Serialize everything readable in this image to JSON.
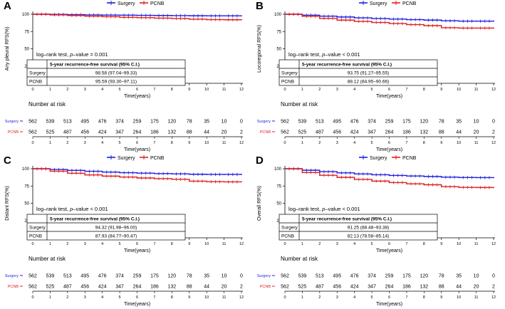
{
  "legend": {
    "surgery": "Surgery",
    "pcnb": "PCNB"
  },
  "colors": {
    "surgery": "#1f1fe0",
    "pcnb": "#e01f1f",
    "axis": "#000000",
    "grid": "#cccccc"
  },
  "table_header": "5-year recurrence-free survival (95% C.I.)",
  "risk_title": "Number at risk",
  "chart_data": [
    {
      "panel": "A",
      "type": "line",
      "title": "",
      "xlabel": "Time(years)",
      "ylabel": "Any pleural RFS(%)",
      "xlim": [
        0,
        12
      ],
      "ylim": [
        0,
        100
      ],
      "x_ticks": [
        "0",
        "1",
        "2",
        "3",
        "4",
        "5",
        "6",
        "7",
        "8",
        "9",
        "10",
        "11",
        "12"
      ],
      "y_ticks": [
        "0",
        "25",
        "50",
        "75",
        "100"
      ],
      "logrank_prefix": "log–rank test, ",
      "logrank_p": "p",
      "logrank_suffix": "–value = 0.001",
      "series": [
        {
          "name": "Surgery",
          "x": [
            0,
            1,
            2,
            3,
            4,
            5,
            6,
            7,
            8,
            9,
            10,
            11,
            12
          ],
          "values": [
            100,
            99.8,
            99.4,
            99.0,
            98.8,
            98.6,
            98.4,
            98.2,
            98.0,
            97.8,
            97.7,
            97.7,
            97.7
          ]
        },
        {
          "name": "PCNB",
          "x": [
            0,
            1,
            2,
            3,
            4,
            5,
            6,
            7,
            8,
            9,
            10,
            11,
            12
          ],
          "values": [
            100,
            99.0,
            98.2,
            97.2,
            96.5,
            95.6,
            95.0,
            94.4,
            93.8,
            92.8,
            92.2,
            92.0,
            92.0
          ]
        }
      ],
      "table_rows": [
        {
          "group": "Surgery",
          "value": "98.58 (97.04–99.33)"
        },
        {
          "group": "PCNB",
          "value": "95.59 (93.30–97.11)"
        }
      ],
      "risk": {
        "surgery": [
          "562",
          "539",
          "513",
          "495",
          "476",
          "374",
          "259",
          "175",
          "120",
          "78",
          "35",
          "10",
          "0"
        ],
        "pcnb": [
          "562",
          "525",
          "487",
          "456",
          "424",
          "347",
          "264",
          "186",
          "132",
          "88",
          "44",
          "20",
          "2"
        ]
      }
    },
    {
      "panel": "B",
      "type": "line",
      "title": "",
      "xlabel": "Time(years)",
      "ylabel": "Locoregional RFS(%)",
      "xlim": [
        0,
        12
      ],
      "ylim": [
        0,
        100
      ],
      "x_ticks": [
        "0",
        "1",
        "2",
        "3",
        "4",
        "5",
        "6",
        "7",
        "8",
        "9",
        "10",
        "11",
        "12"
      ],
      "y_ticks": [
        "0",
        "25",
        "50",
        "75",
        "100"
      ],
      "logrank_prefix": "log–rank test, ",
      "logrank_p": "p",
      "logrank_suffix": "–value < 0.001",
      "series": [
        {
          "name": "Surgery",
          "x": [
            0,
            1,
            2,
            3,
            4,
            5,
            6,
            7,
            8,
            9,
            10,
            11,
            12
          ],
          "values": [
            100,
            98.6,
            97.2,
            96.0,
            94.8,
            93.8,
            93.0,
            92.2,
            91.5,
            90.5,
            90.0,
            90.0,
            90.0
          ]
        },
        {
          "name": "PCNB",
          "x": [
            0,
            1,
            2,
            3,
            4,
            5,
            6,
            7,
            8,
            9,
            10,
            11,
            12
          ],
          "values": [
            100,
            97.0,
            94.0,
            91.5,
            89.6,
            88.1,
            86.5,
            85.0,
            83.5,
            80.5,
            80.0,
            80.0,
            80.0
          ]
        }
      ],
      "table_rows": [
        {
          "group": "Surgery",
          "value": "93.75 (91.27–95.55)"
        },
        {
          "group": "PCNB",
          "value": "88.12 (84.95–90.66)"
        }
      ],
      "risk": {
        "surgery": [
          "562",
          "539",
          "513",
          "495",
          "476",
          "374",
          "259",
          "175",
          "120",
          "78",
          "35",
          "10",
          "0"
        ],
        "pcnb": [
          "562",
          "525",
          "487",
          "456",
          "424",
          "347",
          "264",
          "186",
          "132",
          "88",
          "44",
          "20",
          "2"
        ]
      }
    },
    {
      "panel": "C",
      "type": "line",
      "title": "",
      "xlabel": "Time(years)",
      "ylabel": "Distant RFS(%)",
      "xlim": [
        0,
        12
      ],
      "ylim": [
        0,
        100
      ],
      "x_ticks": [
        "0",
        "1",
        "2",
        "3",
        "4",
        "5",
        "6",
        "7",
        "8",
        "9",
        "10",
        "11",
        "12"
      ],
      "y_ticks": [
        "0",
        "25",
        "50",
        "75",
        "100"
      ],
      "logrank_prefix": "log–rank test, ",
      "logrank_p": "p",
      "logrank_suffix": "–value < 0.001",
      "series": [
        {
          "name": "Surgery",
          "x": [
            0,
            1,
            2,
            3,
            4,
            5,
            6,
            7,
            8,
            9,
            10,
            11,
            12
          ],
          "values": [
            100,
            98.9,
            97.6,
            96.3,
            95.2,
            94.3,
            93.6,
            93.0,
            92.6,
            92.0,
            91.8,
            91.8,
            91.8
          ]
        },
        {
          "name": "PCNB",
          "x": [
            0,
            1,
            2,
            3,
            4,
            5,
            6,
            7,
            8,
            9,
            10,
            11,
            12
          ],
          "values": [
            100,
            96.5,
            93.5,
            91.0,
            89.3,
            87.9,
            86.6,
            85.6,
            84.7,
            82.0,
            81.2,
            81.0,
            81.0
          ]
        }
      ],
      "table_rows": [
        {
          "group": "Surgery",
          "value": "94.32 (91.98–96.00)"
        },
        {
          "group": "PCNB",
          "value": "87.93 (84.77–90.47)"
        }
      ],
      "risk": {
        "surgery": [
          "562",
          "539",
          "513",
          "495",
          "476",
          "374",
          "259",
          "175",
          "120",
          "78",
          "35",
          "10",
          "0"
        ],
        "pcnb": [
          "562",
          "525",
          "487",
          "456",
          "424",
          "347",
          "264",
          "186",
          "132",
          "88",
          "44",
          "20",
          "2"
        ]
      }
    },
    {
      "panel": "D",
      "type": "line",
      "title": "",
      "xlabel": "Time(years)",
      "ylabel": "Overall RFS(%)",
      "xlim": [
        0,
        12
      ],
      "ylim": [
        0,
        100
      ],
      "x_ticks": [
        "0",
        "1",
        "2",
        "3",
        "4",
        "5",
        "6",
        "7",
        "8",
        "9",
        "10",
        "11",
        "12"
      ],
      "y_ticks": [
        "0",
        "25",
        "50",
        "75",
        "100"
      ],
      "logrank_prefix": "log–rank test, ",
      "logrank_p": "p",
      "logrank_suffix": "–value < 0.001",
      "series": [
        {
          "name": "Surgery",
          "x": [
            0,
            1,
            2,
            3,
            4,
            5,
            6,
            7,
            8,
            9,
            10,
            11,
            12
          ],
          "values": [
            100,
            97.8,
            95.8,
            94.0,
            92.5,
            91.3,
            90.3,
            89.5,
            88.8,
            87.8,
            87.3,
            87.2,
            87.2
          ]
        },
        {
          "name": "PCNB",
          "x": [
            0,
            1,
            2,
            3,
            4,
            5,
            6,
            7,
            8,
            9,
            10,
            11,
            12
          ],
          "values": [
            100,
            94.5,
            90.5,
            87.5,
            84.6,
            82.1,
            80.0,
            78.2,
            76.8,
            74.0,
            73.0,
            72.8,
            72.8
          ]
        }
      ],
      "table_rows": [
        {
          "group": "Surgery",
          "value": "91.25 (88.48–93.38)"
        },
        {
          "group": "PCNB",
          "value": "82.13 (78.58–85.14)"
        }
      ],
      "risk": {
        "surgery": [
          "562",
          "539",
          "513",
          "495",
          "476",
          "374",
          "259",
          "175",
          "120",
          "78",
          "35",
          "10",
          "0"
        ],
        "pcnb": [
          "562",
          "525",
          "487",
          "456",
          "424",
          "347",
          "264",
          "186",
          "132",
          "88",
          "44",
          "20",
          "2"
        ]
      }
    }
  ]
}
